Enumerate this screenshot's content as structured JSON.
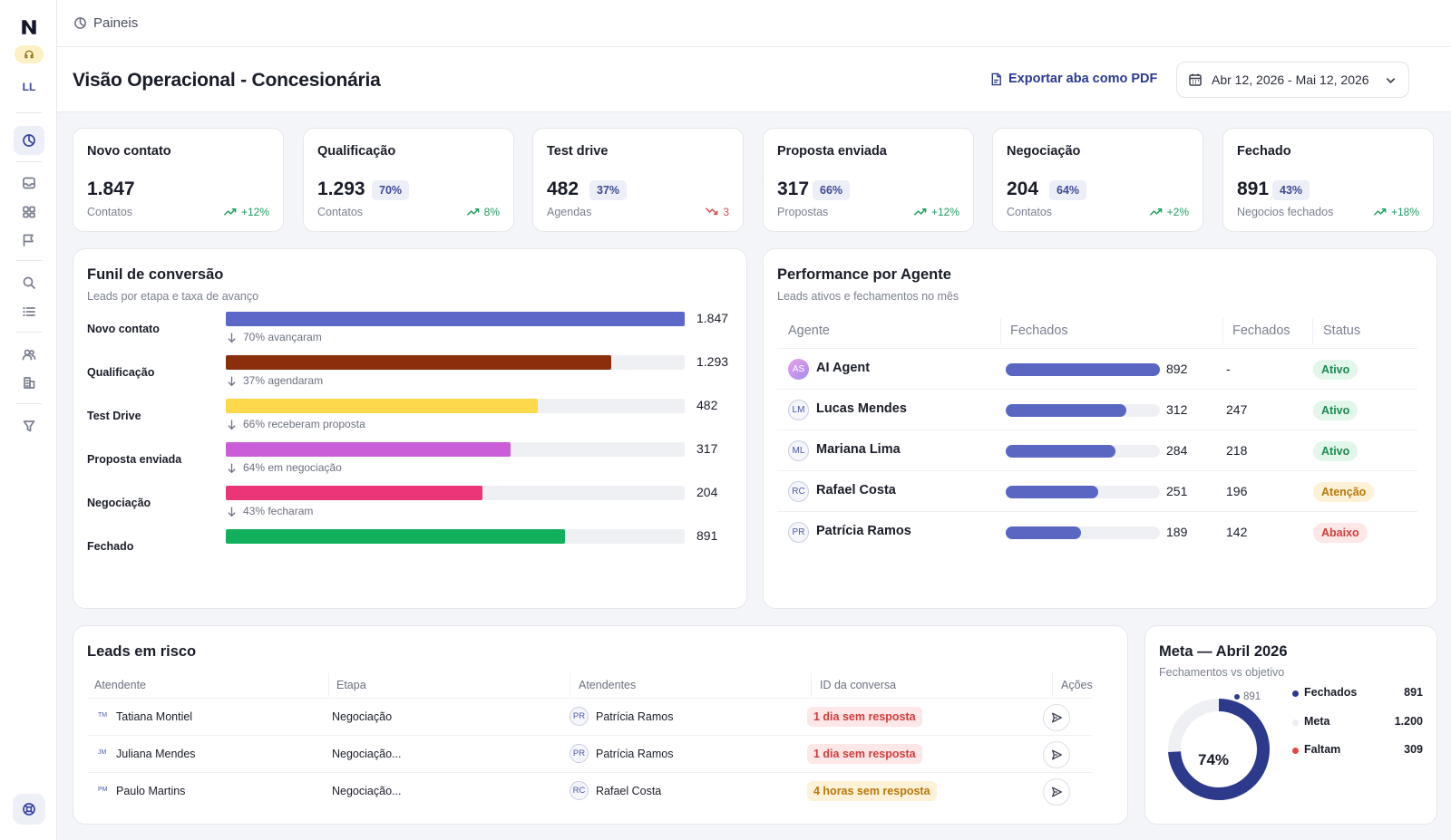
{
  "sidebar": {
    "user_initials": "LL",
    "icons": [
      "logo-icon",
      "headset-icon",
      "dashboard-icon",
      "inbox-icon",
      "kanban-icon",
      "campaign-icon",
      "search-icon",
      "list-icon",
      "users-icon",
      "building-icon",
      "filter-icon",
      "help-icon"
    ]
  },
  "breadcrumb": {
    "label": "Paineis"
  },
  "header": {
    "title": "Visão Operacional - Concesionária",
    "export_label": "Exportar aba como PDF",
    "date_range": "Abr 12, 2026 - Mai 12, 2026"
  },
  "kpis": [
    {
      "title": "Novo contato",
      "value": "1.847",
      "pct": "",
      "sub": "Contatos",
      "trend": "+12%",
      "direction": "up"
    },
    {
      "title": "Qualificação",
      "value": "1.293",
      "pct": "70%",
      "sub": "Contatos",
      "trend": "8%",
      "direction": "up"
    },
    {
      "title": "Test drive",
      "value": "482",
      "pct": "37%",
      "sub": "Agendas",
      "trend": "3",
      "direction": "down"
    },
    {
      "title": "Proposta enviada",
      "value": "317",
      "pct": "66%",
      "sub": "Propostas",
      "trend": "+12%",
      "direction": "up"
    },
    {
      "title": "Negociação",
      "value": "204",
      "pct": "64%",
      "sub": "Contatos",
      "trend": "+2%",
      "direction": "up"
    },
    {
      "title": "Fechado",
      "value": "891",
      "pct": "43%",
      "sub": "Negocios fechados",
      "trend": "+18%",
      "direction": "up"
    }
  ],
  "funnel": {
    "title": "Funil de conversão",
    "subtitle": "Leads por etapa e taxa de avanço",
    "chart_data": {
      "type": "bar",
      "categories": [
        "Novo contato",
        "Qualificação",
        "Test Drive",
        "Proposta enviada",
        "Negociação",
        "Fechado"
      ],
      "values": [
        1847,
        1293,
        482,
        317,
        204,
        891
      ],
      "value_labels": [
        "1.847",
        "1.293",
        "482",
        "317",
        "204",
        "891"
      ],
      "fill_fraction": [
        1.0,
        0.84,
        0.68,
        0.62,
        0.56,
        0.74
      ],
      "colors": [
        "#5b68c7",
        "#8b2e0b",
        "#fcd84a",
        "#c95ed8",
        "#ea3579",
        "#12b05d"
      ],
      "notes": [
        "70% avançaram",
        "37% agendaram",
        "66% receberam proposta",
        "64% em negociação",
        "43% fecharam"
      ]
    }
  },
  "performance": {
    "title": "Performance por Agente",
    "subtitle": "Leads ativos e fechamentos no mês",
    "columns": [
      "Agente",
      "Fechados",
      "Fechados",
      "Status"
    ],
    "rows": [
      {
        "initials": "AS",
        "name": "AI Agent",
        "active": "892",
        "bar": 1.0,
        "closed": "-",
        "status": "Ativo",
        "tone": "green"
      },
      {
        "initials": "LM",
        "name": "Lucas Mendes",
        "active": "312",
        "bar": 0.78,
        "closed": "247",
        "status": "Ativo",
        "tone": "green"
      },
      {
        "initials": "ML",
        "name": "Mariana Lima",
        "active": "284",
        "bar": 0.71,
        "closed": "218",
        "status": "Ativo",
        "tone": "green"
      },
      {
        "initials": "RC",
        "name": "Rafael Costa",
        "active": "251",
        "bar": 0.6,
        "closed": "196",
        "status": "Atenção",
        "tone": "yellow"
      },
      {
        "initials": "PR",
        "name": "Patrícia Ramos",
        "active": "189",
        "bar": 0.49,
        "closed": "142",
        "status": "Abaixo",
        "tone": "red"
      }
    ]
  },
  "risk": {
    "title": "Leads em risco",
    "columns": [
      "Atendente",
      "Etapa",
      "Atendentes",
      "ID da conversa",
      "Ações"
    ],
    "rows": [
      {
        "initials": "TM",
        "name": "Tatiana Montiel",
        "stage": "Negociação",
        "agent_initials": "PR",
        "agent": "Patrícia Ramos",
        "tag": "1 dia sem resposta",
        "tone": "red"
      },
      {
        "initials": "JM",
        "name": "Juliana Mendes",
        "stage": "Negociação...",
        "agent_initials": "PR",
        "agent": "Patrícia Ramos",
        "tag": "1 dia sem resposta",
        "tone": "red"
      },
      {
        "initials": "PM",
        "name": "Paulo Martins",
        "stage": "Negociação...",
        "agent_initials": "RC",
        "agent": "Rafael Costa",
        "tag": "4 horas sem resposta",
        "tone": "yellow"
      }
    ]
  },
  "goal": {
    "title": "Meta — Abril 2026",
    "subtitle": "Fechamentos vs objetivo",
    "center_label": "74%",
    "marker_label": "891",
    "chart_data": {
      "type": "pie",
      "categories": [
        "Fechados",
        "Meta",
        "Faltam"
      ],
      "values": [
        891,
        1200,
        309
      ],
      "value_labels": [
        "891",
        "1.200",
        "309"
      ],
      "fraction": 0.74,
      "colors": [
        "#2d3a8c",
        "#eef0f3",
        "#e24a4a"
      ]
    }
  }
}
